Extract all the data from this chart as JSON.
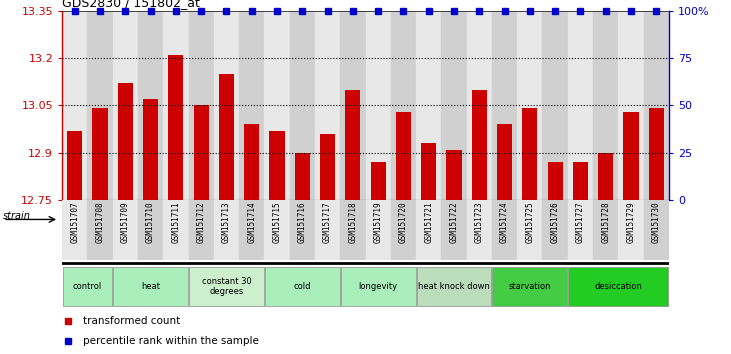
{
  "title": "GDS2830 / 151802_at",
  "samples": [
    "GSM151707",
    "GSM151708",
    "GSM151709",
    "GSM151710",
    "GSM151711",
    "GSM151712",
    "GSM151713",
    "GSM151714",
    "GSM151715",
    "GSM151716",
    "GSM151717",
    "GSM151718",
    "GSM151719",
    "GSM151720",
    "GSM151721",
    "GSM151722",
    "GSM151723",
    "GSM151724",
    "GSM151725",
    "GSM151726",
    "GSM151727",
    "GSM151728",
    "GSM151729",
    "GSM151730"
  ],
  "values": [
    12.97,
    13.04,
    13.12,
    13.07,
    13.21,
    13.05,
    13.15,
    12.99,
    12.97,
    12.9,
    12.96,
    13.1,
    12.87,
    13.03,
    12.93,
    12.91,
    13.1,
    12.99,
    13.04,
    12.87,
    12.87,
    12.9,
    13.03,
    13.04
  ],
  "ylim_min": 12.75,
  "ylim_max": 13.35,
  "yticks": [
    12.75,
    12.9,
    13.05,
    13.2,
    13.35
  ],
  "ytick_labels": [
    "12.75",
    "12.9",
    "13.05",
    "13.2",
    "13.35"
  ],
  "right_yticks": [
    0,
    25,
    50,
    75,
    100
  ],
  "right_ytick_labels": [
    "0",
    "25",
    "50",
    "75",
    "100%"
  ],
  "grid_lines": [
    12.9,
    13.05,
    13.2
  ],
  "bar_color": "#cc0000",
  "percentile_color": "#0000cc",
  "plot_bg": "#ffffff",
  "groups": [
    {
      "label": "control",
      "start": 0,
      "end": 2,
      "color": "#aaeebb"
    },
    {
      "label": "heat",
      "start": 2,
      "end": 5,
      "color": "#aaeebb"
    },
    {
      "label": "constant 30\ndegrees",
      "start": 5,
      "end": 8,
      "color": "#ccf0cc"
    },
    {
      "label": "cold",
      "start": 8,
      "end": 11,
      "color": "#aaeebb"
    },
    {
      "label": "longevity",
      "start": 11,
      "end": 14,
      "color": "#aaeebb"
    },
    {
      "label": "heat knock down",
      "start": 14,
      "end": 17,
      "color": "#bbddbb"
    },
    {
      "label": "starvation",
      "start": 17,
      "end": 20,
      "color": "#44cc44"
    },
    {
      "label": "desiccation",
      "start": 20,
      "end": 24,
      "color": "#22cc22"
    }
  ],
  "col_bg_light": "#e8e8e8",
  "col_bg_dark": "#d0d0d0",
  "legend_red_label": "transformed count",
  "legend_blue_label": "percentile rank within the sample",
  "strain_label": "strain"
}
